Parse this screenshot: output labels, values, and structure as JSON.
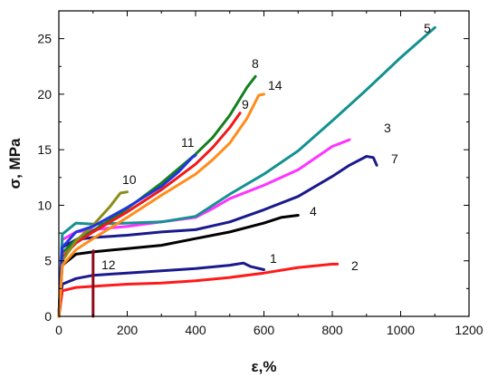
{
  "chart_data": {
    "type": "line",
    "title": "",
    "xlabel": "ε,%",
    "ylabel": "σ, MPa",
    "xlim": [
      0,
      1200
    ],
    "ylim": [
      0,
      27.5
    ],
    "x_ticks": [
      "0",
      "200",
      "400",
      "600",
      "800",
      "1000",
      "1200"
    ],
    "y_ticks": [
      "0",
      "5",
      "10",
      "15",
      "20",
      "25"
    ],
    "x_tick_values": [
      0,
      200,
      400,
      600,
      800,
      1000,
      1200
    ],
    "y_tick_values": [
      0,
      5,
      10,
      15,
      20,
      25
    ],
    "grid": false,
    "series": [
      {
        "name": "1",
        "color": "#1a1a8c",
        "x": [
          0,
          10,
          50,
          100,
          200,
          300,
          400,
          500,
          540,
          560,
          600
        ],
        "y": [
          0,
          2.9,
          3.4,
          3.7,
          3.9,
          4.1,
          4.3,
          4.6,
          4.8,
          4.5,
          4.2
        ]
      },
      {
        "name": "2",
        "color": "#ff1a1a",
        "x": [
          0,
          10,
          50,
          100,
          200,
          300,
          400,
          500,
          600,
          700,
          800,
          815
        ],
        "y": [
          0,
          2.3,
          2.6,
          2.7,
          2.9,
          3.0,
          3.2,
          3.5,
          3.9,
          4.4,
          4.7,
          4.7
        ]
      },
      {
        "name": "3",
        "color": "#ff33ff",
        "x": [
          0,
          10,
          50,
          100,
          200,
          300,
          400,
          450,
          500,
          600,
          700,
          800,
          850
        ],
        "y": [
          0,
          6.9,
          7.6,
          7.8,
          8.1,
          8.5,
          8.9,
          9.7,
          10.6,
          11.8,
          13.2,
          15.3,
          15.9
        ]
      },
      {
        "name": "4",
        "color": "#000000",
        "x": [
          0,
          10,
          50,
          100,
          200,
          300,
          400,
          500,
          600,
          650,
          700
        ],
        "y": [
          0,
          4.6,
          5.6,
          5.8,
          6.1,
          6.4,
          7.0,
          7.6,
          8.4,
          8.9,
          9.1
        ]
      },
      {
        "name": "5",
        "color": "#149191",
        "x": [
          0,
          10,
          50,
          100,
          200,
          300,
          400,
          500,
          600,
          700,
          800,
          900,
          1000,
          1100
        ],
        "y": [
          0,
          7.4,
          8.4,
          8.3,
          8.4,
          8.5,
          9.0,
          11.0,
          12.8,
          14.9,
          17.6,
          20.4,
          23.3,
          26.0
        ]
      },
      {
        "name": "7",
        "color": "#1a1a8c",
        "x": [
          0,
          10,
          50,
          100,
          200,
          300,
          400,
          500,
          600,
          700,
          800,
          850,
          900,
          920,
          930
        ],
        "y": [
          0,
          6.2,
          6.9,
          7.1,
          7.3,
          7.6,
          7.8,
          8.5,
          9.6,
          10.8,
          12.6,
          13.6,
          14.4,
          14.3,
          13.6
        ]
      },
      {
        "name": "8",
        "color": "#12801f",
        "x": [
          0,
          10,
          50,
          100,
          200,
          300,
          400,
          450,
          500,
          550,
          575
        ],
        "y": [
          0,
          5.7,
          6.9,
          7.7,
          9.7,
          12.0,
          14.6,
          16.1,
          18.1,
          20.6,
          21.6
        ]
      },
      {
        "name": "9",
        "color": "#f01818",
        "x": [
          0,
          10,
          50,
          100,
          200,
          300,
          400,
          450,
          500,
          530
        ],
        "y": [
          0,
          5.3,
          6.6,
          7.6,
          9.4,
          11.4,
          13.7,
          15.2,
          17.0,
          18.3
        ]
      },
      {
        "name": "10",
        "color": "#8c8c1a",
        "x": [
          0,
          10,
          50,
          100,
          150,
          180,
          200
        ],
        "y": [
          0,
          5.0,
          6.8,
          8.2,
          9.9,
          11.1,
          11.2
        ]
      },
      {
        "name": "11",
        "color": "#2233e0",
        "x": [
          0,
          10,
          50,
          100,
          200,
          300,
          350,
          390,
          400
        ],
        "y": [
          0,
          6.2,
          7.6,
          8.1,
          9.8,
          11.7,
          13.0,
          14.3,
          14.5
        ]
      },
      {
        "name": "12",
        "color": "#8c0a1a",
        "x": [
          100,
          100,
          100,
          101
        ],
        "y": [
          0,
          2.8,
          5.5,
          5.9
        ]
      },
      {
        "name": "14",
        "color": "#ff8c1a",
        "x": [
          0,
          10,
          50,
          100,
          200,
          300,
          400,
          450,
          500,
          550,
          585,
          600
        ],
        "y": [
          0,
          4.6,
          6.0,
          7.0,
          8.9,
          10.9,
          12.8,
          14.1,
          15.6,
          17.8,
          19.9,
          20.0
        ]
      }
    ]
  }
}
